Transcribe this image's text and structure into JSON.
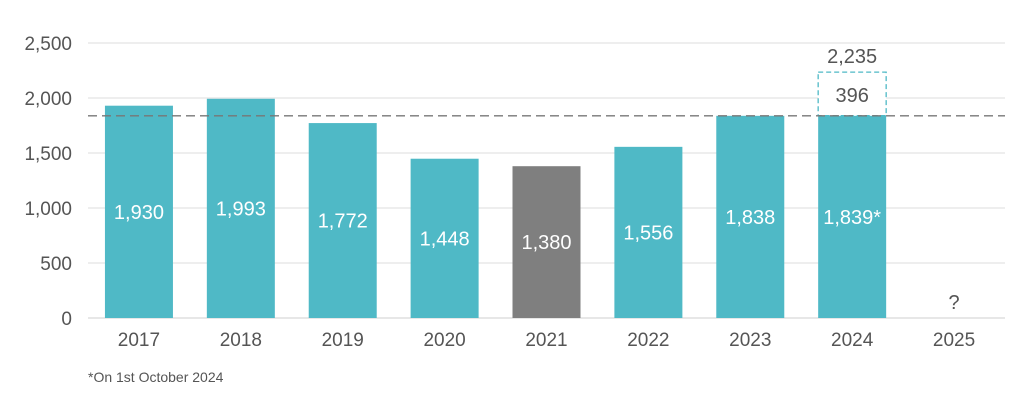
{
  "chart_data": {
    "type": "bar",
    "categories": [
      "2017",
      "2018",
      "2019",
      "2020",
      "2021",
      "2022",
      "2023",
      "2024",
      "2025"
    ],
    "values": [
      1930,
      1993,
      1772,
      1448,
      1380,
      1556,
      1838,
      1839,
      null
    ],
    "value_labels": [
      "1,930",
      "1,993",
      "1,772",
      "1,448",
      "1,380",
      "1,556",
      "1,838",
      "1,839*",
      "?"
    ],
    "highlight_index": 4,
    "projection": {
      "category": "2024",
      "additional_value": 396,
      "additional_label": "396",
      "total_value": 2235,
      "total_label": "2,235"
    },
    "reference_line": 1838,
    "yticks": [
      0,
      500,
      1000,
      1500,
      2000,
      2500
    ],
    "ytick_labels": [
      "0",
      "500",
      "1,000",
      "1,500",
      "2,000",
      "2,500"
    ],
    "ylim": [
      0,
      2500
    ],
    "grid": true,
    "title": "",
    "xlabel": "",
    "ylabel": ""
  },
  "footnote": "*On 1st October 2024",
  "colors": {
    "bar": "#4fb9c6",
    "highlight": "#7f7f7f",
    "grid": "#dedede",
    "reference_line": "#777777",
    "text": "#555555"
  }
}
